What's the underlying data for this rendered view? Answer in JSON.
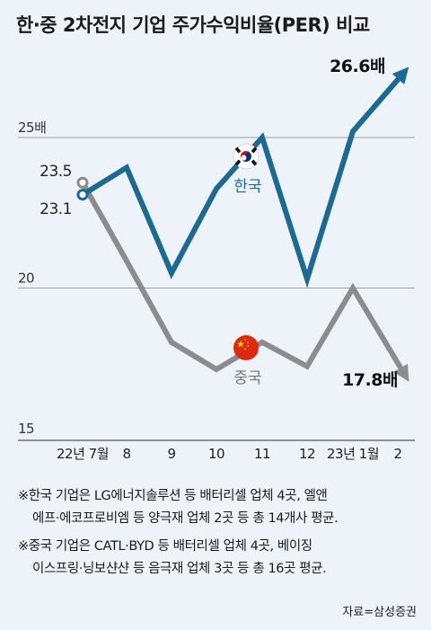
{
  "title": "한·중 2차전지 기업 주가수익비율(PER) 비교",
  "chart_data": {
    "type": "line",
    "categories": [
      "22년 7월",
      "8",
      "9",
      "10",
      "11",
      "12",
      "23년 1월",
      "2"
    ],
    "ylim": [
      15,
      27
    ],
    "yticks": [
      {
        "value": 25,
        "label": "25배"
      },
      {
        "value": 20,
        "label": "20"
      },
      {
        "value": 15,
        "label": "15"
      }
    ],
    "series": [
      {
        "name": "한국",
        "color": "#1b6a94",
        "values": [
          23.1,
          24.0,
          20.5,
          23.3,
          25.0,
          20.3,
          25.2,
          26.6
        ],
        "start_label": "23.1",
        "end_label": "26.6배",
        "flag": "korea-flag-icon"
      },
      {
        "name": "중국",
        "color": "#8c8c8c",
        "values": [
          23.5,
          20.9,
          18.2,
          17.3,
          18.2,
          17.4,
          20.0,
          17.8
        ],
        "start_label": "23.5",
        "end_label": "17.8배",
        "flag": "china-flag-icon"
      }
    ]
  },
  "notes": [
    {
      "line1": "※한국 기업은 LG에너지솔루션 등 배터리셀 업체 4곳, 엘앤",
      "line2": "에프·에코프로비엠 등 양극재 업체 2곳 등 총 14개사 평균."
    },
    {
      "line1": "※중국 기업은 CATL·BYD 등 배터리셀 업체 4곳, 베이징",
      "line2": "이스프링·닝보샨샨 등 음극재 업체 3곳 등 총 16곳 평균."
    }
  ],
  "source": "자료=삼성증권"
}
